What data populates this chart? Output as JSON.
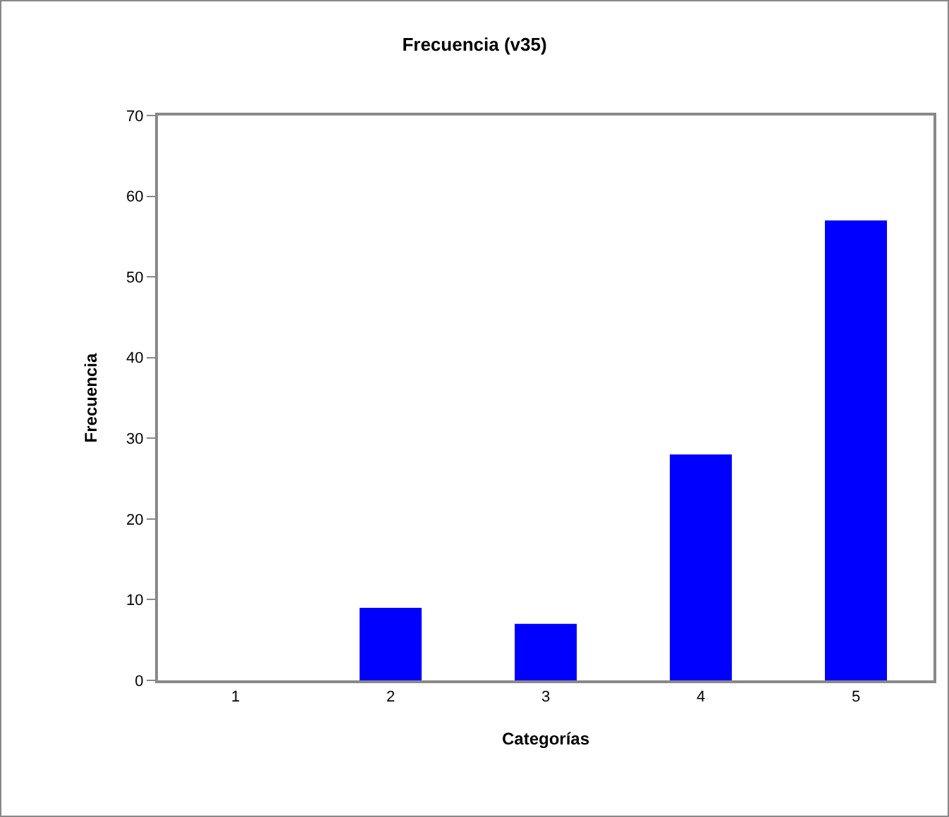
{
  "chart_data": {
    "type": "bar",
    "title": "Frecuencia (v35)",
    "xlabel": "Categorías",
    "ylabel": "Frecuencia",
    "categories": [
      "1",
      "2",
      "3",
      "4",
      "5"
    ],
    "values": [
      0,
      9,
      7,
      28,
      57
    ],
    "color": "#0000ff",
    "ylim": [
      0,
      70
    ],
    "yticks": [
      0,
      10,
      20,
      30,
      40,
      50,
      60,
      70
    ],
    "grid": false,
    "legend": false
  }
}
